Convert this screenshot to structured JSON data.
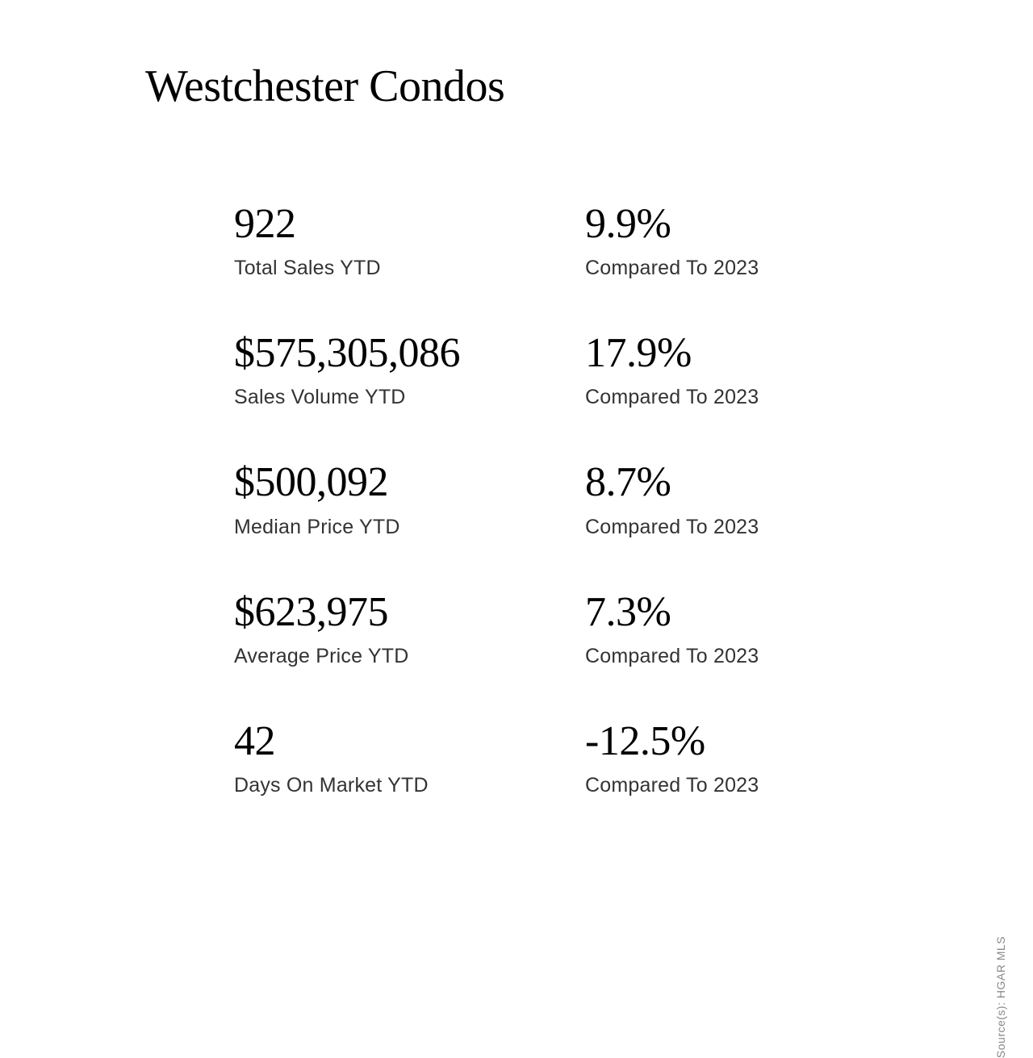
{
  "title": "Westchester Condos",
  "source": "Source(s): HGAR MLS",
  "stats": [
    {
      "value": "922",
      "label": "Total Sales YTD",
      "compare_value": "9.9%",
      "compare_label": "Compared To 2023"
    },
    {
      "value": "$575,305,086",
      "label": "Sales Volume YTD",
      "compare_value": "17.9%",
      "compare_label": "Compared To 2023"
    },
    {
      "value": "$500,092",
      "label": "Median Price YTD",
      "compare_value": "8.7%",
      "compare_label": "Compared To 2023"
    },
    {
      "value": "$623,975",
      "label": "Average Price YTD",
      "compare_value": "7.3%",
      "compare_label": "Compared To 2023"
    },
    {
      "value": "42",
      "label": "Days On Market YTD",
      "compare_value": "-12.5%",
      "compare_label": "Compared To 2023"
    }
  ],
  "colors": {
    "background": "#ffffff",
    "text_primary": "#000000",
    "text_secondary": "#333333",
    "text_muted": "#888888"
  },
  "typography": {
    "title_fontsize": 56,
    "value_fontsize": 52,
    "label_fontsize": 25,
    "source_fontsize": 14,
    "serif_family": "Georgia",
    "sans_family": "Helvetica"
  }
}
